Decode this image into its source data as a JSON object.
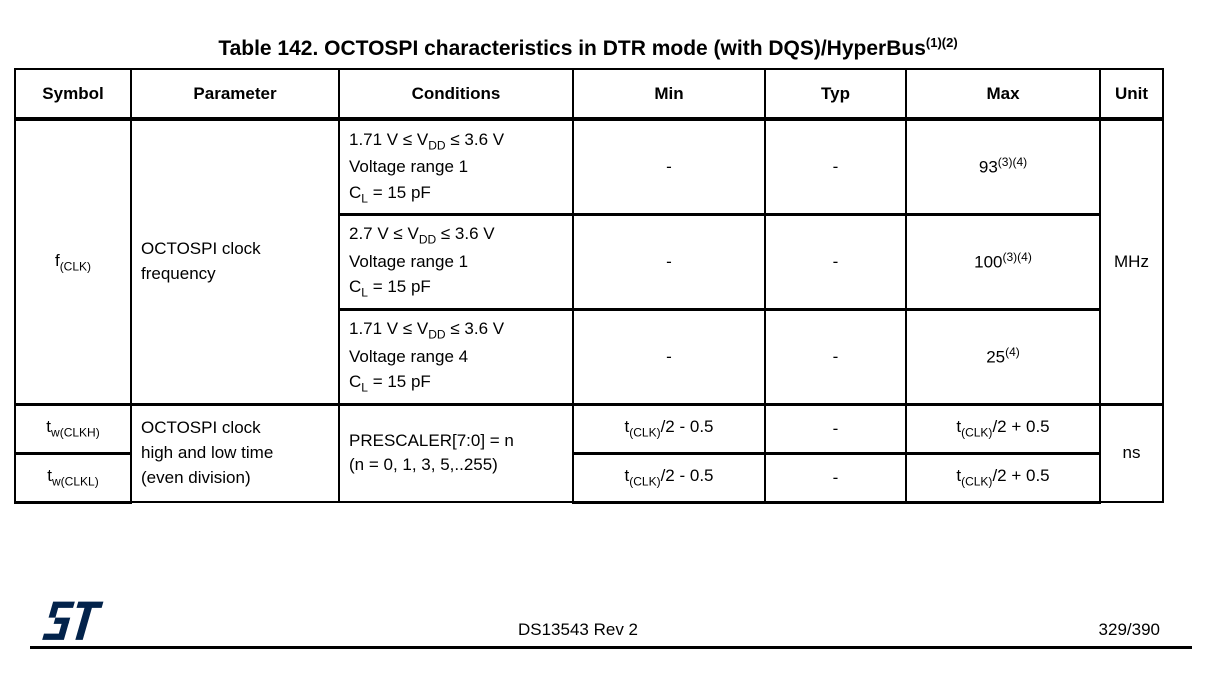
{
  "title": {
    "text": "Table 142. OCTOSPI characteristics in DTR mode (with DQS)/HyperBus",
    "superscript": "(1)(2)"
  },
  "table": {
    "headers": [
      "Symbol",
      "Parameter",
      "Conditions",
      "Min",
      "Typ",
      "Max",
      "Unit"
    ],
    "clk_group": {
      "symbol": [
        {
          "t": "f"
        },
        {
          "t": "(CLK)",
          "s": "sub"
        }
      ],
      "parameter": "OCTOSPI clock\nfrequency",
      "unit": "MHz",
      "rows": [
        {
          "conditions": [
            {
              "t": "1.71 V ≤ V"
            },
            {
              "t": "DD",
              "s": "sub"
            },
            {
              "t": " ≤ 3.6 V\nVoltage range 1\nC"
            },
            {
              "t": "L",
              "s": "sub"
            },
            {
              "t": " = 15 pF"
            }
          ],
          "min": "-",
          "typ": "-",
          "max": [
            {
              "t": "93"
            },
            {
              "t": "(3)(4)",
              "s": "sup"
            }
          ]
        },
        {
          "conditions": [
            {
              "t": "2.7 V ≤ V"
            },
            {
              "t": "DD",
              "s": "sub"
            },
            {
              "t": " ≤ 3.6 V\nVoltage range 1\nC"
            },
            {
              "t": "L",
              "s": "sub"
            },
            {
              "t": " = 15 pF"
            }
          ],
          "min": "-",
          "typ": "-",
          "max": [
            {
              "t": "100"
            },
            {
              "t": "(3)(4)",
              "s": "sup"
            }
          ]
        },
        {
          "conditions": [
            {
              "t": "1.71 V ≤ V"
            },
            {
              "t": "DD",
              "s": "sub"
            },
            {
              "t": " ≤ 3.6 V\nVoltage range 4\nC"
            },
            {
              "t": "L",
              "s": "sub"
            },
            {
              "t": " = 15 pF"
            }
          ],
          "min": "-",
          "typ": "-",
          "max": [
            {
              "t": "25"
            },
            {
              "t": "(4)",
              "s": "sup"
            }
          ]
        }
      ]
    },
    "clkwidth_group": {
      "parameter": "OCTOSPI clock\nhigh and low time\n(even division)",
      "conditions": "PRESCALER[7:0] = n\n(n = 0, 1, 3, 5,..255)",
      "unit": "ns",
      "rows": [
        {
          "symbol": [
            {
              "t": "t"
            },
            {
              "t": "w(CLKH)",
              "s": "sub"
            }
          ],
          "min": [
            {
              "t": "t"
            },
            {
              "t": "(CLK)",
              "s": "sub"
            },
            {
              "t": "/2 - 0.5"
            }
          ],
          "typ": "-",
          "max": [
            {
              "t": "t"
            },
            {
              "t": "(CLK)",
              "s": "sub"
            },
            {
              "t": "/2 + 0.5"
            }
          ]
        },
        {
          "symbol": [
            {
              "t": "t"
            },
            {
              "t": "w(CLKL)",
              "s": "sub"
            }
          ],
          "min": [
            {
              "t": "t"
            },
            {
              "t": "(CLK)",
              "s": "sub"
            },
            {
              "t": "/2 - 0.5"
            }
          ],
          "typ": "-",
          "max": [
            {
              "t": "t"
            },
            {
              "t": "(CLK)",
              "s": "sub"
            },
            {
              "t": "/2 + 0.5"
            }
          ]
        }
      ]
    }
  },
  "footer": {
    "doc_ref": "DS13543 Rev 2",
    "page_number": "329/390",
    "logo": {
      "label": "st-logo",
      "color": "#03234B"
    }
  }
}
